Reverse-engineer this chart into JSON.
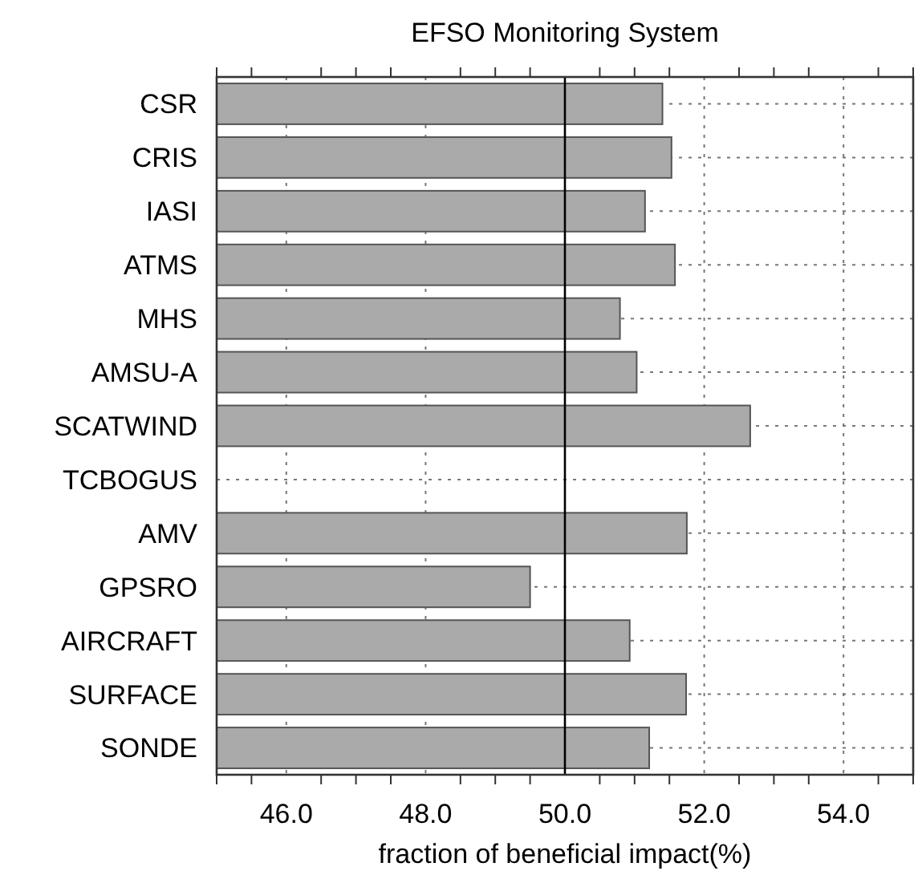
{
  "chart_data": {
    "type": "bar",
    "orientation": "horizontal",
    "title": "EFSO Monitoring System",
    "xlabel": "fraction of beneficial impact(%)",
    "categories": [
      "CSR",
      "CRIS",
      "IASI",
      "ATMS",
      "MHS",
      "AMSU-A",
      "SCATWIND",
      "TCBOGUS",
      "AMV",
      "GPSRO",
      "AIRCRAFT",
      "SURFACE",
      "SONDE"
    ],
    "values": [
      51.4,
      51.53,
      51.15,
      51.58,
      50.79,
      51.03,
      52.66,
      null,
      51.75,
      49.5,
      50.93,
      51.74,
      51.21
    ],
    "color": "#aaaaaa",
    "xlim": [
      45,
      55
    ],
    "xticks": [
      {
        "value": 45,
        "label": null
      },
      {
        "value": 45.5,
        "label": null
      },
      {
        "value": 46,
        "label": "46.0"
      },
      {
        "value": 46.5,
        "label": null
      },
      {
        "value": 47,
        "label": null
      },
      {
        "value": 47.5,
        "label": null
      },
      {
        "value": 48,
        "label": "48.0"
      },
      {
        "value": 48.5,
        "label": null
      },
      {
        "value": 49,
        "label": null
      },
      {
        "value": 49.5,
        "label": null
      },
      {
        "value": 50,
        "label": "50.0"
      },
      {
        "value": 50.5,
        "label": null
      },
      {
        "value": 51,
        "label": null
      },
      {
        "value": 51.5,
        "label": null
      },
      {
        "value": 52,
        "label": "52.0"
      },
      {
        "value": 52.5,
        "label": null
      },
      {
        "value": 53,
        "label": null
      },
      {
        "value": 53.5,
        "label": null
      },
      {
        "value": 54,
        "label": "54.0"
      },
      {
        "value": 54.5,
        "label": null
      },
      {
        "value": 55,
        "label": null
      }
    ],
    "ref_lines": [
      {
        "axis": "x",
        "value": 50,
        "color": "#000000"
      }
    ],
    "grid": true
  }
}
